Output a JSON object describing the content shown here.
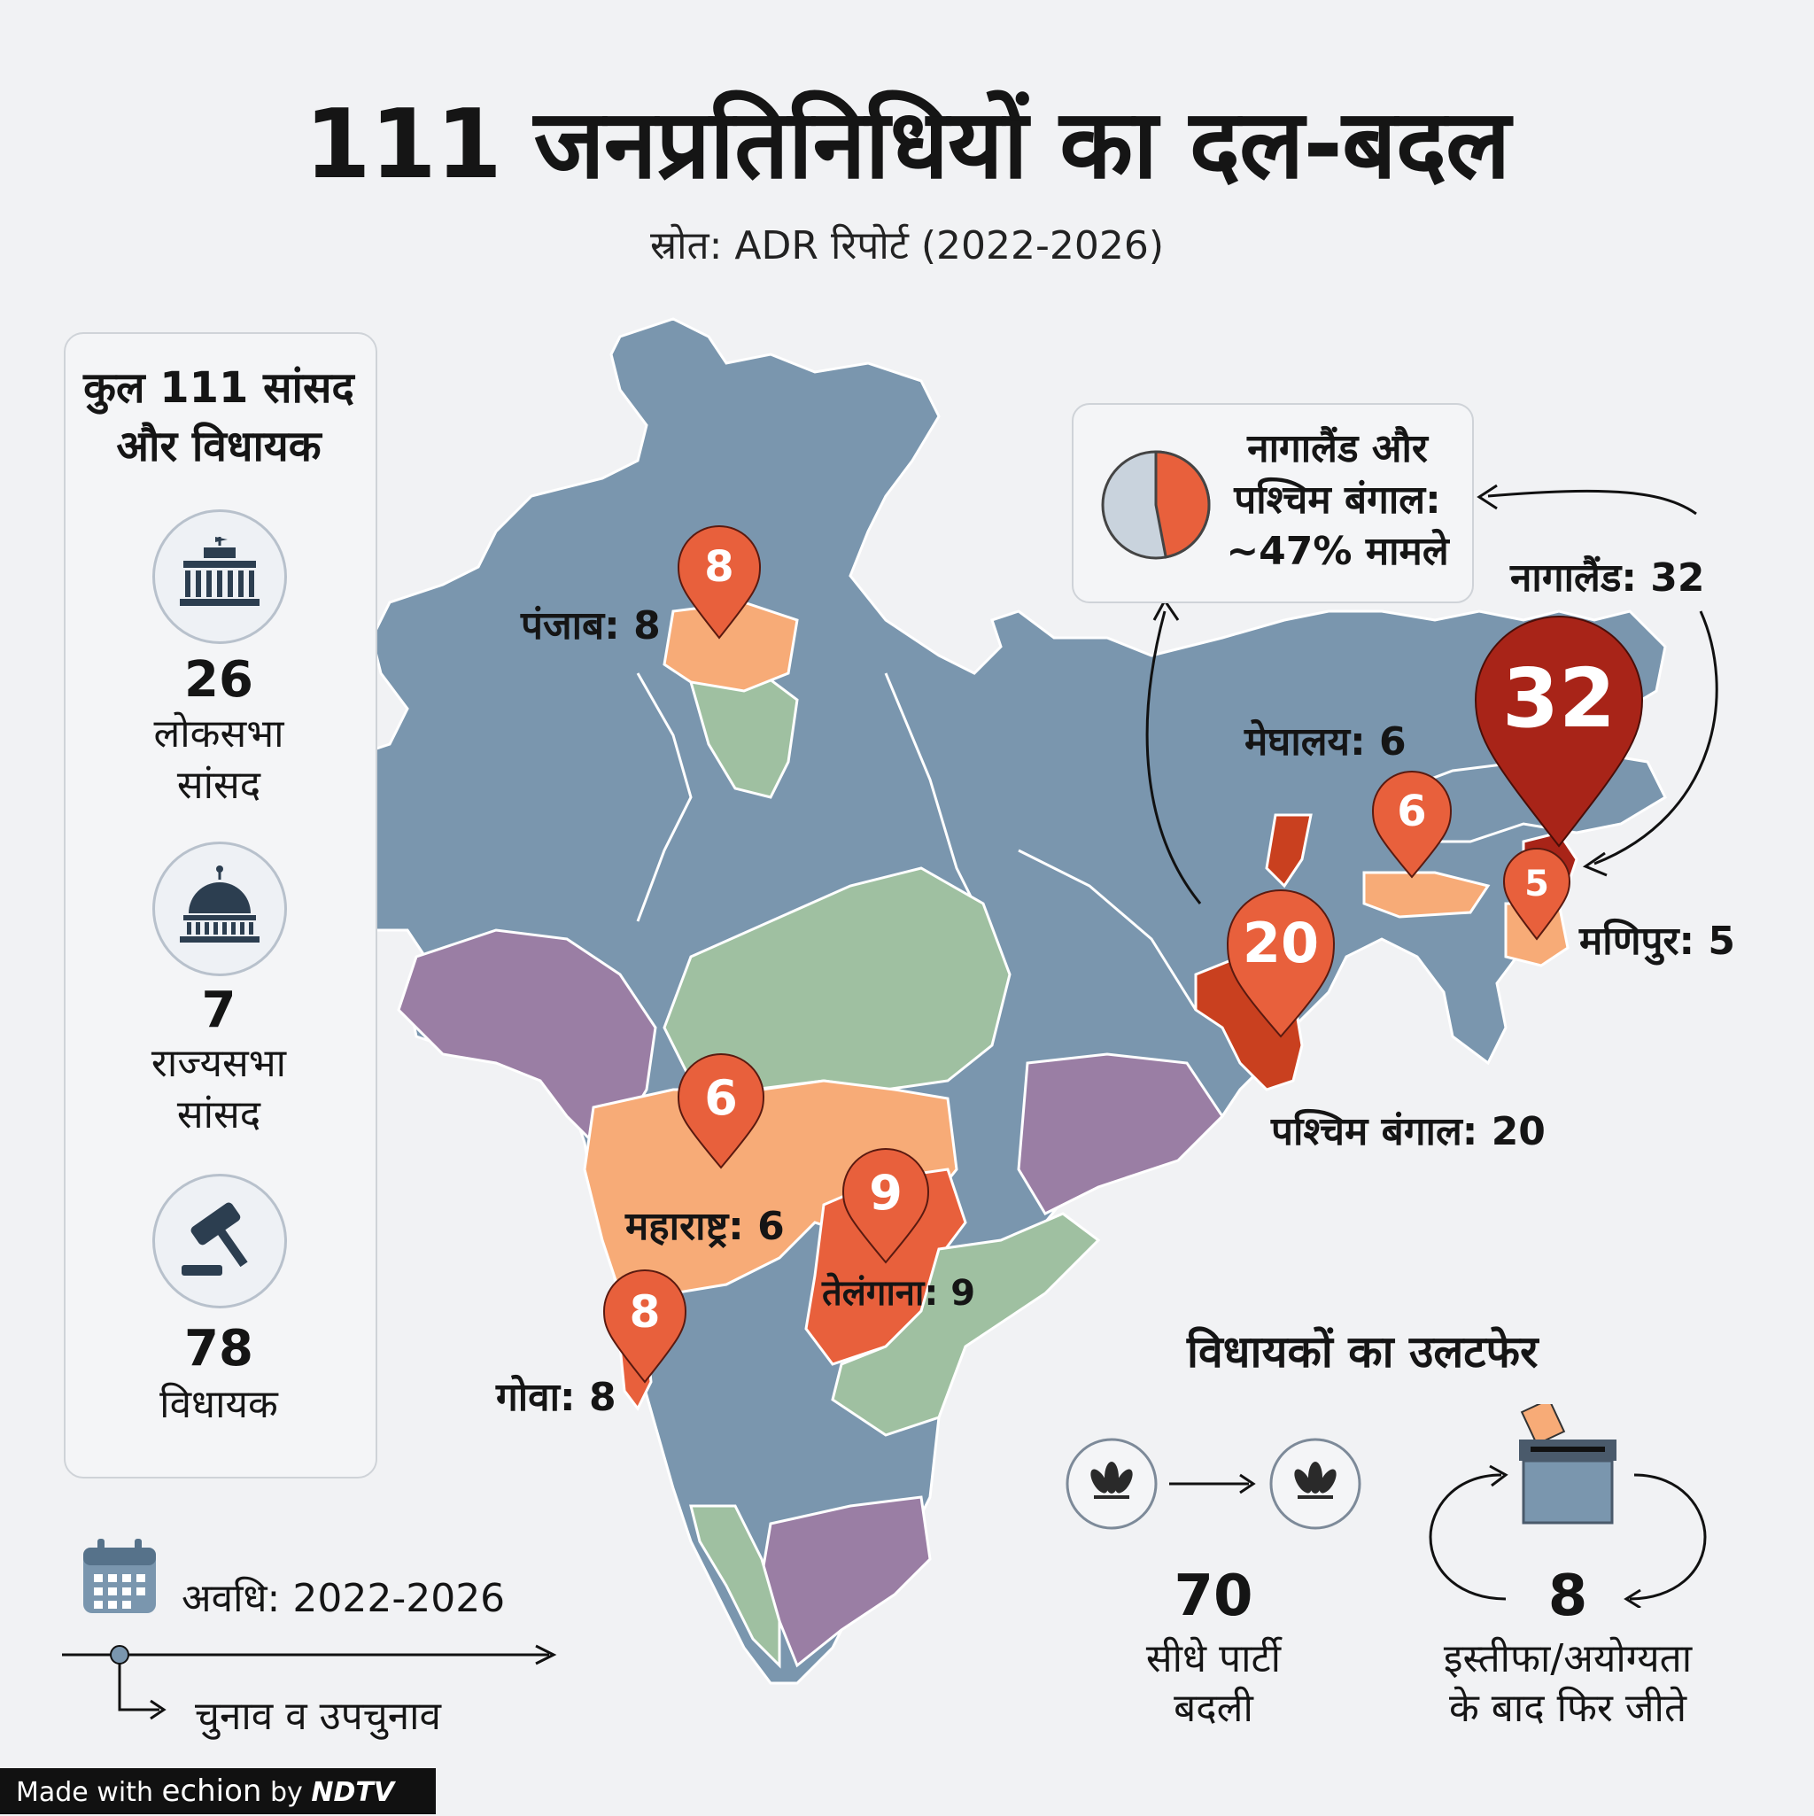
{
  "header": {
    "title": "111 जनप्रतिनिधियों का दल-बदल",
    "subtitle": "स्रोत: ADR रिपोर्ट (2022-2026)"
  },
  "sidebar": {
    "title_line1": "कुल 111 सांसद",
    "title_line2": "और विधायक",
    "items": [
      {
        "icon": "parliament-icon",
        "value": "26",
        "label_line1": "लोकसभा",
        "label_line2": "सांसद"
      },
      {
        "icon": "dome-icon",
        "value": "7",
        "label_line1": "राज्यसभा",
        "label_line2": "सांसद"
      },
      {
        "icon": "gavel-icon",
        "value": "78",
        "label_line1": "",
        "label_line2": "विधायक"
      }
    ]
  },
  "timeline": {
    "period": "अवधि: 2022-2026",
    "note": "चुनाव व उपचुनाव"
  },
  "map": {
    "pins": [
      {
        "state": "पंजाब",
        "value": "8",
        "label": "पंजाब: 8"
      },
      {
        "state": "महाराष्ट्र",
        "value": "6",
        "label": "महाराष्ट्र: 6"
      },
      {
        "state": "तेलंगाना",
        "value": "9",
        "label": "तेलंगाना: 9"
      },
      {
        "state": "गोवा",
        "value": "8",
        "label": "गोवा: 8"
      },
      {
        "state": "पश्चिम बंगाल",
        "value": "20",
        "label": "पश्चिम बंगाल: 20"
      },
      {
        "state": "मेघालय",
        "value": "6",
        "label": "मेघालय: 6"
      },
      {
        "state": "नागालैंड",
        "value": "32",
        "label": "नागालैंड: 32"
      },
      {
        "state": "मणिपुर",
        "value": "5",
        "label": "मणिपुर: 5"
      }
    ],
    "colors": {
      "low": "#f7ab77",
      "mid": "#e8603c",
      "high": "#a82418",
      "blue": "#7a96ae",
      "green": "#9fc0a1",
      "purple": "#9a7ea4"
    }
  },
  "callout": {
    "line1": "नागालैंड और",
    "line2": "पश्चिम बंगाल:",
    "line3": "~47% मामले",
    "share_percent": 47
  },
  "mla_shift": {
    "title": "विधायकों का उलटफेर",
    "direct_value": "70",
    "direct_line1": "सीधे पार्टी",
    "direct_line2": "बदली",
    "rewin_value": "8",
    "rewin_line1": "इस्तीफा/अयोग्यता",
    "rewin_line2": "के बाद फिर जीते"
  },
  "footer": {
    "made_with": "Made with",
    "brand": "echion",
    "by": "by",
    "partner": "NDTV"
  }
}
